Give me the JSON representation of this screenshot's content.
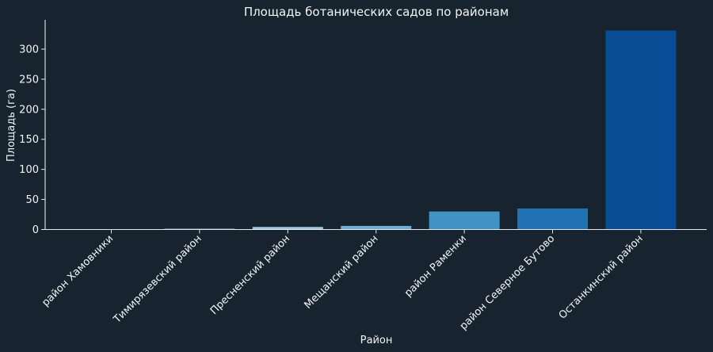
{
  "chart_data": {
    "type": "bar",
    "title": "Площадь ботанических садов по районам",
    "xlabel": "Район",
    "ylabel": "Площадь (га)",
    "categories": [
      "район Хамовники",
      "Тимирязевский район",
      "Пресненский район",
      "Мещанский район",
      "район Раменки",
      "район Северное Бутово",
      "Останкинский район"
    ],
    "values": [
      0.4,
      1.2,
      4.3,
      6.0,
      30.0,
      35.0,
      331.0
    ],
    "colors": [
      "#d0e3f3",
      "#b8d5ea",
      "#9ecae1",
      "#6baed6",
      "#4292c6",
      "#2171b5",
      "#084d96"
    ],
    "ylim": [
      0,
      345
    ],
    "yticks": [
      0,
      50,
      100,
      150,
      200,
      250,
      300
    ],
    "grid": false,
    "legend": "none"
  }
}
